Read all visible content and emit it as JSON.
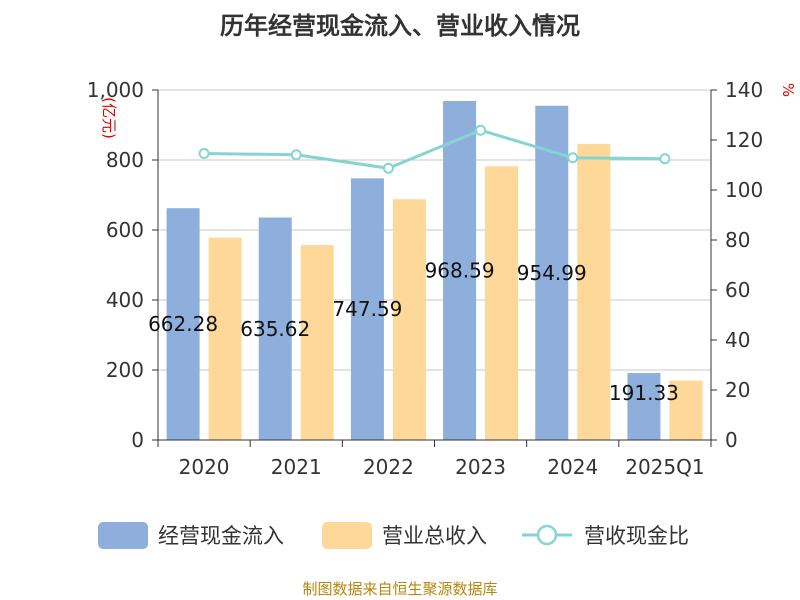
{
  "chart_data": {
    "type": "bar",
    "title": "历年经营现金流入、营业收入情况",
    "categories": [
      "2020",
      "2021",
      "2022",
      "2023",
      "2024",
      "2025Q1"
    ],
    "series": [
      {
        "name": "经营现金流入",
        "kind": "bar",
        "axis": "left",
        "color": "#8eaedb",
        "values": [
          662.28,
          635.62,
          747.59,
          968.59,
          954.99,
          191.33
        ],
        "labels": [
          "662.28",
          "635.62",
          "747.59",
          "968.59",
          "954.99",
          "191.33"
        ]
      },
      {
        "name": "营业总收入",
        "kind": "bar",
        "axis": "left",
        "color": "#fdd898",
        "values": [
          578,
          557,
          688,
          782,
          846,
          170
        ]
      },
      {
        "name": "营收现金比",
        "kind": "line",
        "axis": "right",
        "color": "#86d4d2",
        "values": [
          114.6,
          114.1,
          108.7,
          123.9,
          112.9,
          112.5
        ]
      }
    ],
    "y_left": {
      "unit": "(亿元)",
      "min": 0,
      "max": 1000,
      "ticks": [
        0,
        200,
        400,
        600,
        800,
        1000
      ],
      "tick_labels": [
        "0",
        "200",
        "400",
        "600",
        "800",
        "1,000"
      ]
    },
    "y_right": {
      "unit": "%",
      "min": 0,
      "max": 140,
      "ticks": [
        0,
        20,
        40,
        60,
        80,
        100,
        120,
        140
      ],
      "tick_labels": [
        "0",
        "20",
        "40",
        "60",
        "80",
        "100",
        "120",
        "140"
      ]
    },
    "grid": true,
    "legend": "bottom"
  },
  "footer": {
    "source": "制图数据来自恒生聚源数据库"
  }
}
